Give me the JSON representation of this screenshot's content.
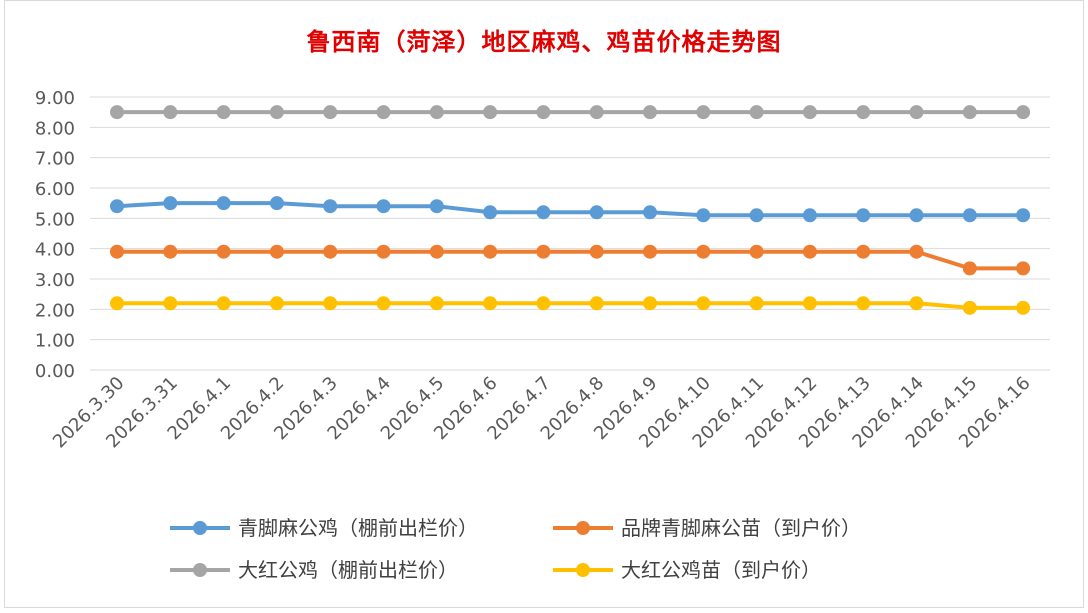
{
  "chart_data": {
    "type": "line",
    "title": "鲁西南（菏泽）地区麻鸡、鸡苗价格走势图",
    "categories": [
      "2026.3.30",
      "2026.3.31",
      "2026.4.1",
      "2026.4.2",
      "2026.4.3",
      "2026.4.4",
      "2026.4.5",
      "2026.4.6",
      "2026.4.7",
      "2026.4.8",
      "2026.4.9",
      "2026.4.10",
      "2026.4.11",
      "2026.4.12",
      "2026.4.13",
      "2026.4.14",
      "2026.4.15",
      "2026.4.16"
    ],
    "ylim": [
      0,
      9
    ],
    "yticks": [
      "0.00",
      "1.00",
      "2.00",
      "3.00",
      "4.00",
      "5.00",
      "6.00",
      "7.00",
      "8.00",
      "9.00"
    ],
    "grid": true,
    "legend_position": "bottom",
    "series": [
      {
        "name": "青脚麻公鸡（棚前出栏价）",
        "color": "#5b9bd5",
        "values": [
          5.4,
          5.5,
          5.5,
          5.5,
          5.4,
          5.4,
          5.4,
          5.2,
          5.2,
          5.2,
          5.2,
          5.1,
          5.1,
          5.1,
          5.1,
          5.1,
          5.1,
          5.1
        ]
      },
      {
        "name": "品牌青脚麻公苗（到户价）",
        "color": "#ed7d31",
        "values": [
          3.9,
          3.9,
          3.9,
          3.9,
          3.9,
          3.9,
          3.9,
          3.9,
          3.9,
          3.9,
          3.9,
          3.9,
          3.9,
          3.9,
          3.9,
          3.9,
          3.35,
          3.35
        ]
      },
      {
        "name": "大红公鸡（棚前出栏价）",
        "color": "#a5a5a5",
        "values": [
          8.5,
          8.5,
          8.5,
          8.5,
          8.5,
          8.5,
          8.5,
          8.5,
          8.5,
          8.5,
          8.5,
          8.5,
          8.5,
          8.5,
          8.5,
          8.5,
          8.5,
          8.5
        ]
      },
      {
        "name": "大红公鸡苗（到户价）",
        "color": "#ffc000",
        "values": [
          2.2,
          2.2,
          2.2,
          2.2,
          2.2,
          2.2,
          2.2,
          2.2,
          2.2,
          2.2,
          2.2,
          2.2,
          2.2,
          2.2,
          2.2,
          2.2,
          2.05,
          2.05
        ]
      }
    ]
  }
}
